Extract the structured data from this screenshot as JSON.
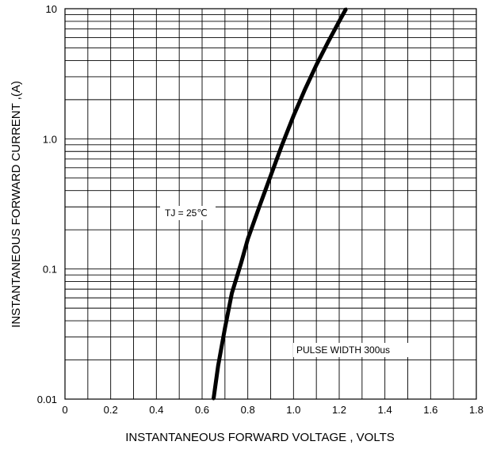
{
  "chart_data": {
    "type": "line",
    "title": "",
    "xlabel": "INSTANTANEOUS FORWARD VOLTAGE , VOLTS",
    "ylabel": "INSTANTANEOUS  FORWARD CURRENT ,(A)",
    "xlim": [
      0,
      1.8
    ],
    "ylim": [
      0.01,
      10
    ],
    "y_scale": "log",
    "grid": true,
    "x_ticks": [
      "0",
      "0.2",
      "0.4",
      "0.6",
      "0.8",
      "1.0",
      "1.2",
      "1.4",
      "1.6",
      "1.8"
    ],
    "y_ticks": [
      "0.01",
      "0.1",
      "1.0",
      "10"
    ],
    "annotations": [
      "TJ = 25℃",
      "PULSE WIDTH 300us"
    ],
    "line_color": "#000000",
    "series": [
      {
        "x": [
          0.65,
          0.67,
          0.7,
          0.73,
          0.77,
          0.8,
          0.85,
          0.9,
          0.95,
          1.0,
          1.05,
          1.1,
          1.15,
          1.2,
          1.23
        ],
        "y": [
          0.01,
          0.018,
          0.035,
          0.065,
          0.11,
          0.17,
          0.3,
          0.52,
          0.9,
          1.5,
          2.4,
          3.7,
          5.5,
          8.0,
          10.0
        ]
      }
    ]
  }
}
